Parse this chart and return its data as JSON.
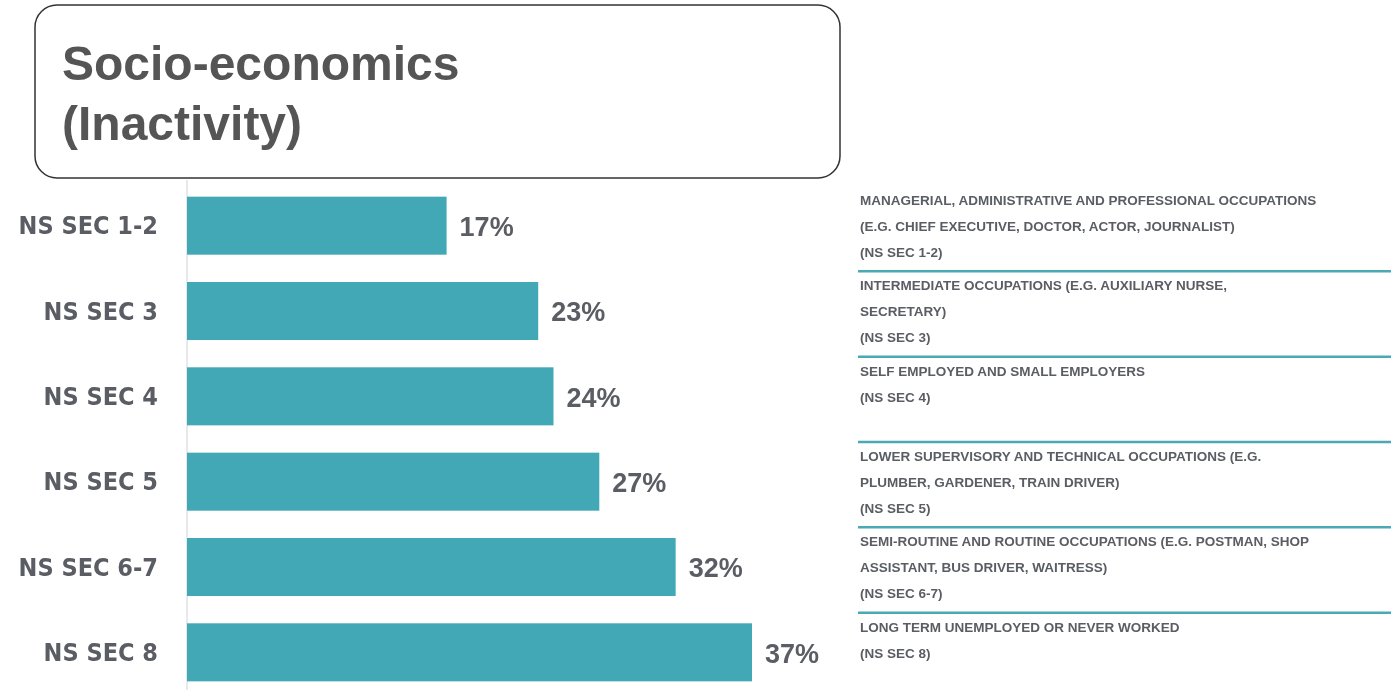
{
  "chart_data": {
    "type": "bar",
    "orientation": "horizontal",
    "title": "Socio-economics\n(Inactivity)",
    "categories": [
      "NS SEC 1-2",
      "NS SEC 3",
      "NS SEC 4",
      "NS SEC 5",
      "NS SEC 6-7",
      "NS SEC 8"
    ],
    "values": [
      17,
      23,
      24,
      27,
      32,
      37
    ],
    "value_labels": [
      "17%",
      "23%",
      "24%",
      "27%",
      "32%",
      "37%"
    ],
    "color": "#42a8b5",
    "tick_labels": "y",
    "annotations": [
      "MANAGERIAL, ADMINISTRATIVE AND PROFESSIONAL OCCUPATIONS\n(E.G. CHIEF EXECUTIVE, DOCTOR, ACTOR, JOURNALIST)\n(NS SEC 1-2)",
      "INTERMEDIATE OCCUPATIONS (E.G. AUXILIARY NURSE,\nSECRETARY)\n(NS SEC 3)",
      "SELF EMPLOYED AND SMALL EMPLOYERS\n(NS SEC 4)",
      "LOWER SUPERVISORY AND TECHNICAL OCCUPATIONS (E.G.\nPLUMBER, GARDENER, TRAIN DRIVER)\n(NS SEC 5)",
      "SEMI-ROUTINE AND ROUTINE OCCUPATIONS (E.G. POSTMAN, SHOP\nASSISTANT, BUS DRIVER, WAITRESS)\n(NS SEC 6-7)",
      "LONG TERM UNEMPLOYED OR NEVER WORKED\n(NS SEC 8)"
    ]
  }
}
